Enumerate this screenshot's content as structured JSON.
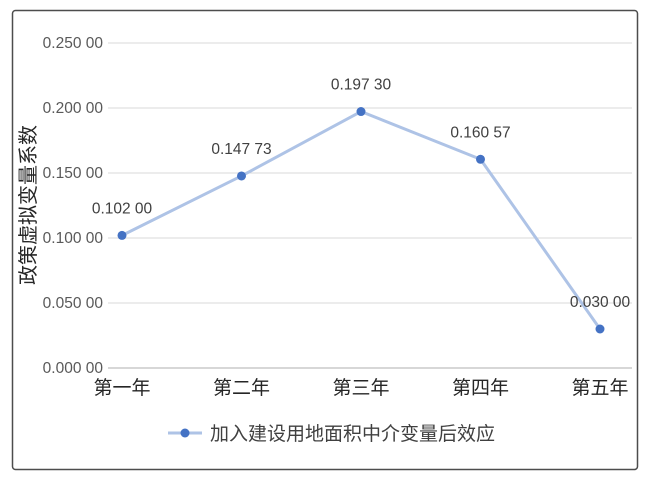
{
  "chart_data": {
    "type": "line",
    "categories": [
      "第一年",
      "第二年",
      "第三年",
      "第四年",
      "第五年"
    ],
    "series": [
      {
        "name": "加入建设用地面积中介变量后效应",
        "values": [
          0.102,
          0.14773,
          0.1973,
          0.16057,
          0.03
        ],
        "data_labels": [
          "0.102 00",
          "0.147 73",
          "0.197 30",
          "0.160 57",
          "0.030 00"
        ],
        "line_color": "#aec3e6",
        "marker_color": "#4472c4"
      }
    ],
    "ylabel": "政策虚拟变量系数",
    "ylim": [
      0,
      0.25
    ],
    "yticks": [
      0,
      0.05,
      0.1,
      0.15,
      0.2,
      0.25
    ],
    "ytick_labels": [
      "0.000 00",
      "0.050 00",
      "0.100 00",
      "0.150 00",
      "0.200 00",
      "0.250 00"
    ],
    "grid": true,
    "legend": "bottom"
  }
}
